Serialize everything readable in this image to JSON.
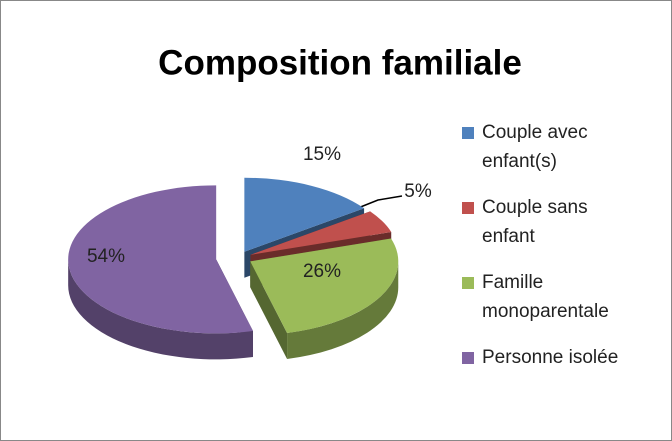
{
  "chart_data": {
    "type": "pie3d",
    "title": "Composition familiale",
    "categories": [
      "Couple avec enfant(s)",
      "Couple sans enfant",
      "Famille monoparentale",
      "Personne isolée"
    ],
    "values": [
      15,
      5,
      26,
      54
    ],
    "value_labels": [
      "15%",
      "5%",
      "26%",
      "54%"
    ],
    "colors": [
      "#4f81bd",
      "#c0504d",
      "#9bbb59",
      "#8064a2"
    ],
    "legend": "right"
  }
}
